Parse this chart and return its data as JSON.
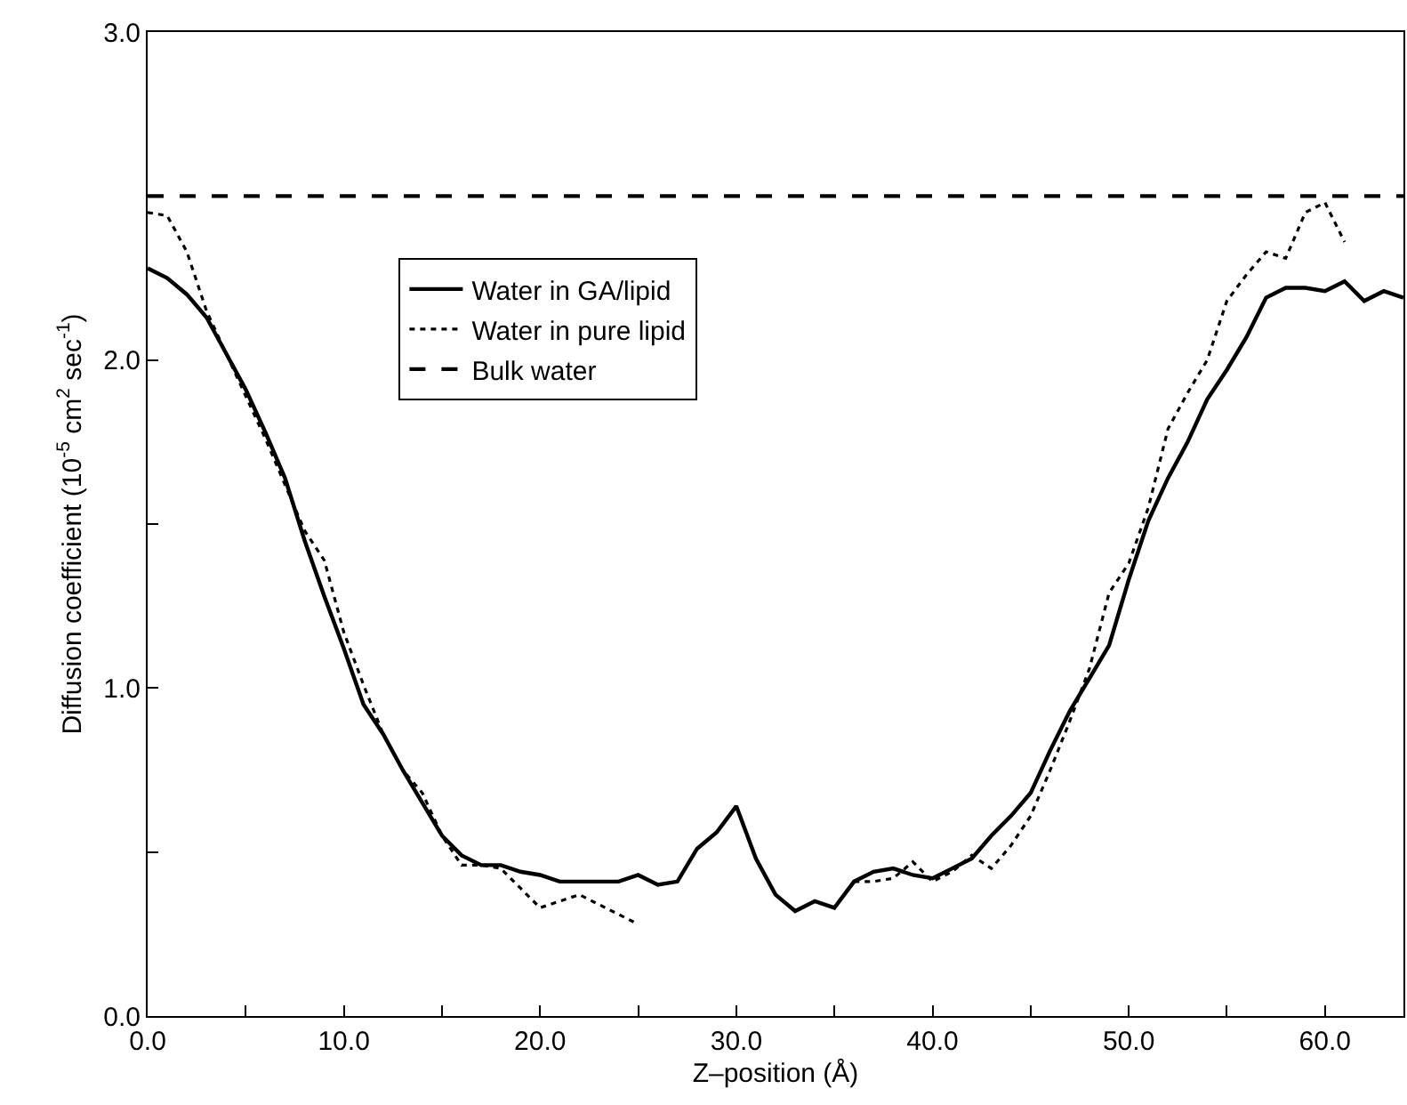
{
  "chart_data": {
    "type": "line",
    "xlabel": "Z–position (Å)",
    "ylabel": "Diffusion coefficient (10$^{-5}$ cm$^{2}$ sec$^{-1}$)",
    "xlim": [
      0,
      64
    ],
    "ylim": [
      0,
      3
    ],
    "xticks": [
      {
        "value": 0,
        "label": "0.0"
      },
      {
        "value": 5,
        "label": null
      },
      {
        "value": 10,
        "label": "10.0"
      },
      {
        "value": 15,
        "label": null
      },
      {
        "value": 20,
        "label": "20.0"
      },
      {
        "value": 25,
        "label": null
      },
      {
        "value": 30,
        "label": "30.0"
      },
      {
        "value": 35,
        "label": null
      },
      {
        "value": 40,
        "label": "40.0"
      },
      {
        "value": 45,
        "label": null
      },
      {
        "value": 50,
        "label": "50.0"
      },
      {
        "value": 55,
        "label": null
      },
      {
        "value": 60,
        "label": "60.0"
      }
    ],
    "yticks": [
      {
        "value": 0,
        "label": "0.0"
      },
      {
        "value": 0.5,
        "label": null
      },
      {
        "value": 1,
        "label": "1.0"
      },
      {
        "value": 1.5,
        "label": null
      },
      {
        "value": 2,
        "label": "2.0"
      },
      {
        "value": 2.5,
        "label": null
      },
      {
        "value": 3,
        "label": "3.0"
      }
    ],
    "legend": "top left",
    "marker": "none",
    "series": [
      {
        "name": "Water in GA/lipid",
        "color": "#000000",
        "line_style": "solid",
        "x": [
          0,
          1,
          2,
          3,
          4,
          5,
          6,
          7,
          8,
          9,
          10,
          11,
          12,
          13,
          14,
          15,
          16,
          17,
          18,
          19,
          20,
          21,
          22,
          23,
          24,
          25,
          26,
          27,
          28,
          29,
          30,
          31,
          32,
          33,
          34,
          35,
          36,
          37,
          38,
          39,
          40,
          41,
          42,
          43,
          44,
          45,
          46,
          47,
          48,
          49,
          50,
          51,
          52,
          53,
          54,
          55,
          56,
          57,
          58,
          59,
          60,
          61,
          62,
          63,
          64
        ],
        "values": [
          2.28,
          2.25,
          2.2,
          2.13,
          2.02,
          1.91,
          1.78,
          1.64,
          1.45,
          1.28,
          1.12,
          0.95,
          0.86,
          0.75,
          0.65,
          0.55,
          0.49,
          0.46,
          0.46,
          0.44,
          0.43,
          0.41,
          0.41,
          0.41,
          0.41,
          0.43,
          0.4,
          0.41,
          0.51,
          0.56,
          0.64,
          0.48,
          0.37,
          0.32,
          0.35,
          0.33,
          0.41,
          0.44,
          0.45,
          0.43,
          0.42,
          0.45,
          0.48,
          0.55,
          0.61,
          0.68,
          0.81,
          0.93,
          1.03,
          1.13,
          1.33,
          1.51,
          1.64,
          1.75,
          1.88,
          1.97,
          2.07,
          2.19,
          2.22,
          2.22,
          2.21,
          2.24,
          2.18,
          2.21,
          2.19
        ]
      },
      {
        "name": "Water in pure lipid",
        "color": "#000000",
        "line_style": "dotted",
        "x": [
          0,
          1,
          2,
          3,
          4,
          5,
          6,
          7,
          8,
          9,
          10,
          11,
          12,
          13,
          14,
          15,
          16,
          17,
          18,
          19,
          20,
          21,
          22,
          23,
          24,
          25,
          30,
          36,
          37,
          38,
          39,
          40,
          41,
          42,
          43,
          44,
          45,
          46,
          47,
          48,
          49,
          50,
          51,
          52,
          53,
          54,
          55,
          56,
          57,
          58,
          59,
          60,
          61
        ],
        "values": [
          2.45,
          2.44,
          2.33,
          2.15,
          2.02,
          1.89,
          1.76,
          1.62,
          1.48,
          1.39,
          1.17,
          1.01,
          0.86,
          0.75,
          0.68,
          0.55,
          0.46,
          0.46,
          0.45,
          0.39,
          0.33,
          0.35,
          0.37,
          0.34,
          0.31,
          0.28,
          null,
          0.41,
          0.41,
          0.42,
          0.47,
          0.41,
          0.44,
          0.49,
          0.45,
          0.52,
          0.61,
          0.75,
          0.9,
          1.06,
          1.29,
          1.38,
          1.55,
          1.79,
          1.9,
          2.0,
          2.18,
          2.26,
          2.33,
          2.31,
          2.45,
          2.48,
          2.36
        ]
      },
      {
        "name": "Bulk water",
        "color": "#000000",
        "line_style": "dashed",
        "x": [
          0,
          64
        ],
        "values": [
          2.5,
          2.5
        ]
      }
    ]
  }
}
